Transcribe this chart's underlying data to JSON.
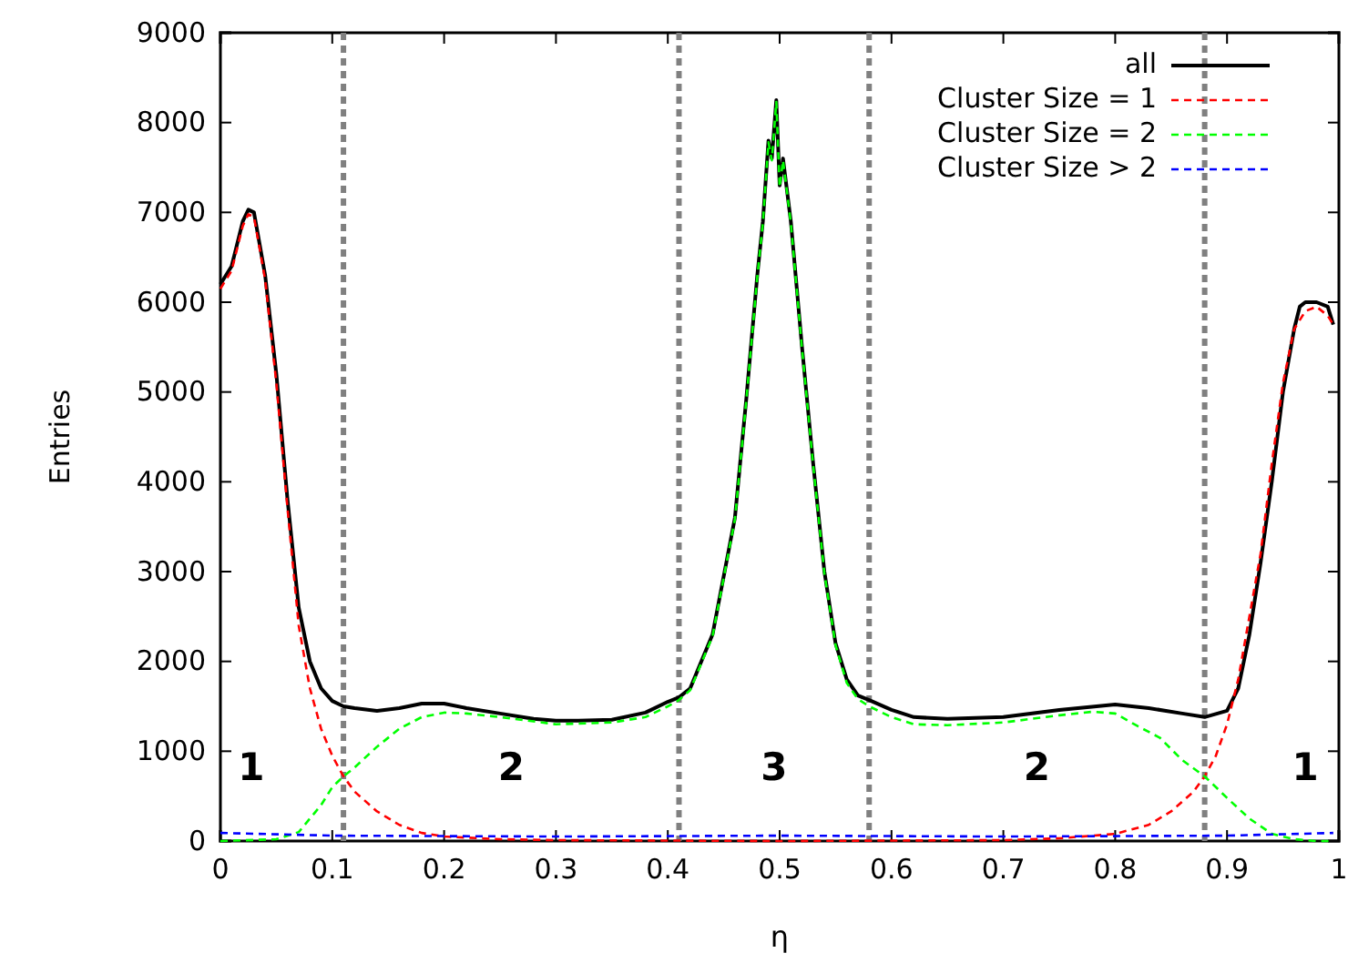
{
  "chart_data": {
    "type": "line",
    "xlabel": "η",
    "ylabel": "Entries",
    "xlim": [
      0,
      1
    ],
    "ylim": [
      0,
      9000
    ],
    "xticks": [
      0,
      0.1,
      0.2,
      0.3,
      0.4,
      0.5,
      0.6,
      0.7,
      0.8,
      0.9,
      1
    ],
    "yticks": [
      0,
      1000,
      2000,
      3000,
      4000,
      5000,
      6000,
      7000,
      8000,
      9000
    ],
    "grid": false,
    "legend": "top right",
    "marker": "none",
    "series": [
      {
        "name": "all",
        "color": "#000000",
        "line_style": "solid",
        "x": [
          0,
          0.01,
          0.02,
          0.025,
          0.03,
          0.04,
          0.05,
          0.06,
          0.07,
          0.08,
          0.09,
          0.1,
          0.11,
          0.12,
          0.14,
          0.16,
          0.18,
          0.2,
          0.22,
          0.25,
          0.28,
          0.3,
          0.32,
          0.35,
          0.38,
          0.4,
          0.41,
          0.42,
          0.44,
          0.46,
          0.47,
          0.48,
          0.485,
          0.49,
          0.493,
          0.497,
          0.5,
          0.503,
          0.51,
          0.52,
          0.53,
          0.54,
          0.55,
          0.56,
          0.57,
          0.58,
          0.6,
          0.62,
          0.65,
          0.7,
          0.75,
          0.8,
          0.83,
          0.86,
          0.88,
          0.9,
          0.91,
          0.92,
          0.93,
          0.94,
          0.95,
          0.96,
          0.965,
          0.97,
          0.98,
          0.99,
          0.995
        ],
        "values": [
          6200,
          6400,
          6900,
          7030,
          7000,
          6300,
          5200,
          3800,
          2600,
          2000,
          1700,
          1560,
          1500,
          1480,
          1450,
          1480,
          1530,
          1530,
          1480,
          1420,
          1360,
          1340,
          1340,
          1350,
          1430,
          1550,
          1600,
          1700,
          2300,
          3600,
          4900,
          6300,
          6900,
          7800,
          7600,
          8250,
          7300,
          7600,
          6900,
          5500,
          4200,
          3000,
          2200,
          1800,
          1620,
          1570,
          1460,
          1380,
          1360,
          1380,
          1460,
          1520,
          1480,
          1420,
          1380,
          1450,
          1700,
          2300,
          3100,
          4000,
          5000,
          5700,
          5950,
          6000,
          6000,
          5950,
          5750
        ]
      },
      {
        "name": "Cluster Size = 1",
        "color": "#ff0000",
        "line_style": "dashed",
        "x": [
          0,
          0.01,
          0.02,
          0.025,
          0.03,
          0.04,
          0.05,
          0.06,
          0.07,
          0.08,
          0.09,
          0.1,
          0.11,
          0.12,
          0.14,
          0.16,
          0.18,
          0.2,
          0.25,
          0.3,
          0.5,
          0.7,
          0.75,
          0.8,
          0.83,
          0.85,
          0.87,
          0.88,
          0.89,
          0.9,
          0.91,
          0.92,
          0.93,
          0.94,
          0.95,
          0.96,
          0.97,
          0.98,
          0.99,
          0.995
        ],
        "values": [
          6150,
          6350,
          6850,
          6980,
          6950,
          6250,
          5100,
          3700,
          2400,
          1700,
          1250,
          950,
          720,
          550,
          330,
          180,
          90,
          50,
          20,
          10,
          0,
          10,
          30,
          80,
          180,
          330,
          550,
          720,
          950,
          1300,
          1800,
          2500,
          3200,
          4200,
          5100,
          5700,
          5900,
          5950,
          5850,
          5750
        ]
      },
      {
        "name": "Cluster Size = 2",
        "color": "#00ff00",
        "line_style": "dashed",
        "x": [
          0,
          0.05,
          0.07,
          0.09,
          0.1,
          0.11,
          0.12,
          0.14,
          0.16,
          0.18,
          0.2,
          0.22,
          0.25,
          0.3,
          0.35,
          0.38,
          0.4,
          0.41,
          0.42,
          0.44,
          0.46,
          0.47,
          0.48,
          0.485,
          0.49,
          0.493,
          0.497,
          0.5,
          0.503,
          0.51,
          0.52,
          0.53,
          0.54,
          0.55,
          0.56,
          0.57,
          0.58,
          0.6,
          0.62,
          0.65,
          0.7,
          0.75,
          0.78,
          0.8,
          0.82,
          0.84,
          0.86,
          0.88,
          0.9,
          0.92,
          0.94,
          0.96,
          0.98,
          0.995
        ],
        "values": [
          0,
          20,
          100,
          400,
          600,
          720,
          820,
          1050,
          1250,
          1380,
          1430,
          1420,
          1380,
          1300,
          1320,
          1380,
          1500,
          1570,
          1680,
          2280,
          3580,
          4880,
          6280,
          6880,
          7780,
          7580,
          8230,
          7280,
          7580,
          6880,
          5480,
          4180,
          2980,
          2180,
          1760,
          1580,
          1500,
          1380,
          1300,
          1290,
          1320,
          1400,
          1440,
          1420,
          1280,
          1150,
          900,
          720,
          480,
          250,
          80,
          20,
          0,
          0
        ]
      },
      {
        "name": "Cluster Size > 2",
        "color": "#0000ff",
        "line_style": "dashed",
        "x": [
          0,
          0.1,
          0.3,
          0.5,
          0.7,
          0.9,
          0.995
        ],
        "values": [
          90,
          60,
          50,
          60,
          50,
          60,
          90
        ]
      }
    ],
    "ref_lines": [
      {
        "axis": "x",
        "value": 0.11,
        "color": "#808080",
        "line_style": "dashed"
      },
      {
        "axis": "x",
        "value": 0.41,
        "color": "#808080",
        "line_style": "dashed"
      },
      {
        "axis": "x",
        "value": 0.58,
        "color": "#808080",
        "line_style": "dashed"
      },
      {
        "axis": "x",
        "value": 0.88,
        "color": "#808080",
        "line_style": "dashed"
      }
    ],
    "annotations": [
      "1",
      "2",
      "3",
      "2",
      "1"
    ]
  }
}
